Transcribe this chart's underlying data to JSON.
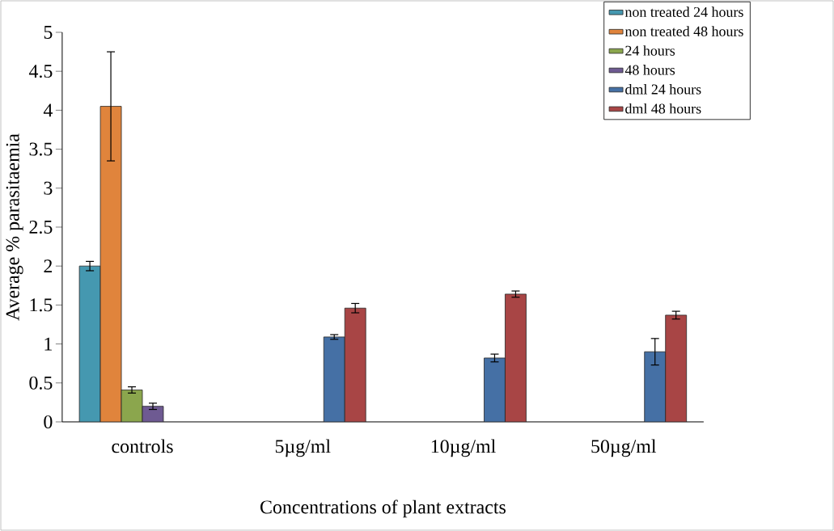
{
  "chart_data": {
    "type": "bar",
    "xlabel": "Concentrations of plant extracts",
    "ylabel": "Average % parasitaemia",
    "categories": [
      "controls",
      "5µg/ml",
      "10µg/ml",
      "50µg/ml"
    ],
    "series": [
      {
        "name": "non treated 24 hours",
        "color": "#4598b0",
        "values": [
          2.0,
          null,
          null,
          null
        ],
        "errors": [
          0.06,
          null,
          null,
          null
        ]
      },
      {
        "name": "non treated 48 hours",
        "color": "#e0843c",
        "values": [
          4.05,
          null,
          null,
          null
        ],
        "errors": [
          0.7,
          null,
          null,
          null
        ]
      },
      {
        "name": "24 hours",
        "color": "#8ba64d",
        "values": [
          0.41,
          null,
          null,
          null
        ],
        "errors": [
          0.04,
          null,
          null,
          null
        ]
      },
      {
        "name": "48 hours",
        "color": "#6e5a92",
        "values": [
          0.2,
          null,
          null,
          null
        ],
        "errors": [
          0.04,
          null,
          null,
          null
        ]
      },
      {
        "name": "dml 24 hours",
        "color": "#4570a5",
        "values": [
          null,
          1.09,
          0.82,
          0.9
        ],
        "errors": [
          null,
          0.03,
          0.05,
          0.17
        ]
      },
      {
        "name": "dml 48 hours",
        "color": "#a84545",
        "values": [
          null,
          1.46,
          1.64,
          1.37
        ],
        "errors": [
          null,
          0.06,
          0.04,
          0.05
        ]
      }
    ],
    "ylim": [
      0,
      5
    ],
    "yticks": [
      0,
      0.5,
      1,
      1.5,
      2,
      2.5,
      3,
      3.5,
      4,
      4.5,
      5
    ],
    "grid": false,
    "legend": "top right"
  }
}
